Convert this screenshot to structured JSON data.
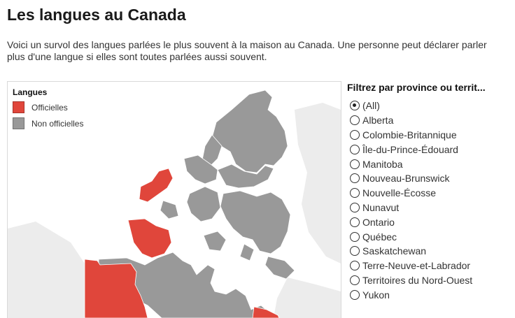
{
  "page": {
    "title": "Les langues au Canada",
    "intro": "Voici un survol des langues parlées le plus souvent à la maison au Canada. Une personne peut déclarer parler plus d'une langue si elles sont toutes parlées aussi souvent."
  },
  "legend": {
    "title": "Langues",
    "items": [
      {
        "label": "Officielles",
        "color": "#e0463b"
      },
      {
        "label": "Non officielles",
        "color": "#999999"
      }
    ]
  },
  "filter": {
    "title": "Filtrez par province ou territ...",
    "selected_index": 0,
    "options": [
      "(All)",
      "Alberta",
      "Colombie-Britannique",
      "Île-du-Prince-Édouard",
      "Manitoba",
      "Nouveau-Brunswick",
      "Nouvelle-Écosse",
      "Nunavut",
      "Ontario",
      "Québec",
      "Saskatchewan",
      "Terre-Neuve-et-Labrador",
      "Territoires du Nord-Ouest",
      "Yukon"
    ]
  },
  "colors": {
    "official": "#e0463b",
    "unofficial": "#999999",
    "background_land": "#ececec"
  }
}
